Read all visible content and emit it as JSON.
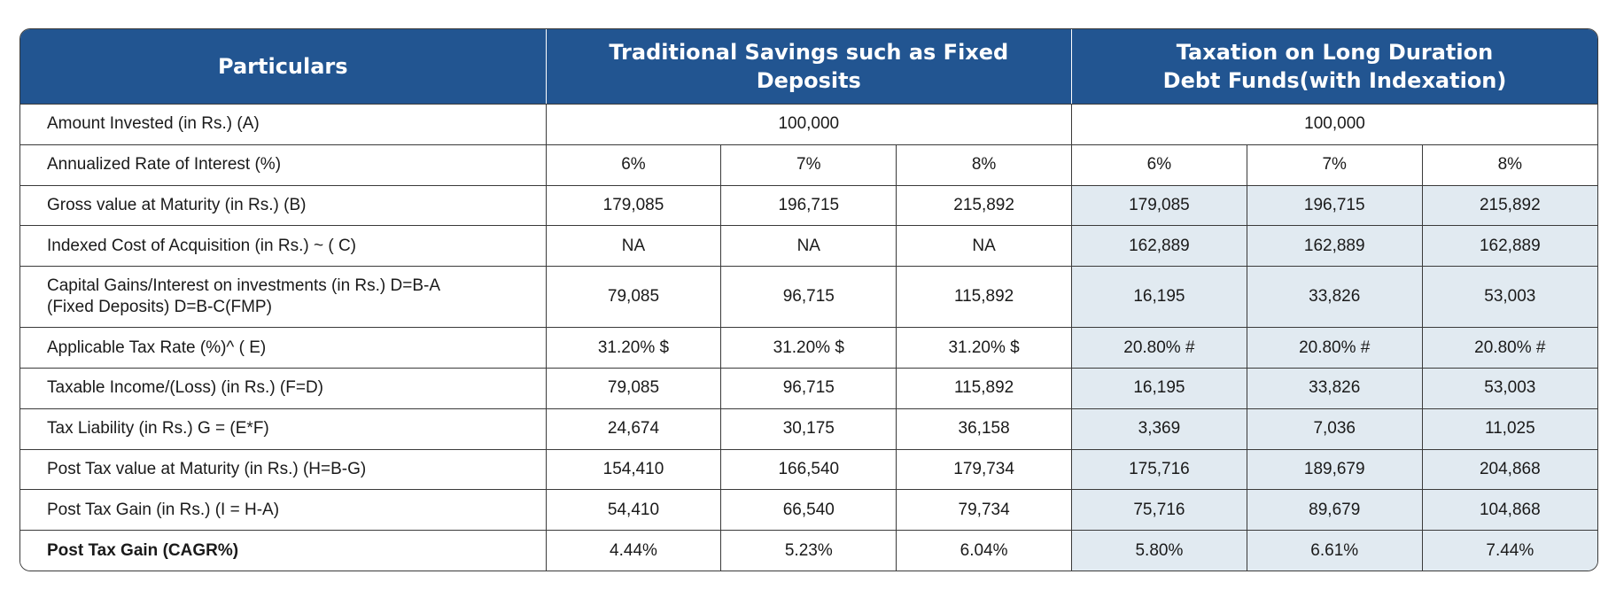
{
  "header": {
    "particulars": "Particulars",
    "traditional": "Traditional Savings such as Fixed Deposits",
    "debt_line1": "Taxation on Long Duration",
    "debt_line2": "Debt Funds(with Indexation)"
  },
  "colors": {
    "header_bg": "#225591",
    "header_text": "#ffffff",
    "shaded_cell": "#e1eaf1",
    "border": "#3a3a3a"
  },
  "rows": {
    "amount": {
      "label": "Amount Invested (in Rs.) (A)",
      "traditional": "100,000",
      "debt": "100,000"
    },
    "rate": {
      "label": "Annualized Rate of Interest (%)",
      "values": [
        "6%",
        "7%",
        "8%",
        "6%",
        "7%",
        "8%"
      ]
    },
    "gross": {
      "label": "Gross value at Maturity (in Rs.) (B)",
      "values": [
        "179,085",
        "196,715",
        "215,892",
        "179,085",
        "196,715",
        "215,892"
      ]
    },
    "indexed": {
      "label": "Indexed Cost of Acquisition (in Rs.) ~ ( C)",
      "values": [
        "NA",
        "NA",
        "NA",
        "162,889",
        "162,889",
        "162,889"
      ]
    },
    "capital_gains": {
      "label_line1": "Capital Gains/Interest on investments (in Rs.) D=B-A",
      "label_line2": "(Fixed Deposits) D=B-C(FMP)",
      "values": [
        "79,085",
        "96,715",
        "115,892",
        "16,195",
        "33,826",
        "53,003"
      ]
    },
    "tax_rate": {
      "label": "Applicable Tax Rate (%)^ ( E)",
      "values": [
        "31.20% $",
        "31.20% $",
        "31.20% $",
        "20.80% #",
        "20.80% #",
        "20.80% #"
      ]
    },
    "taxable_income": {
      "label": "Taxable Income/(Loss) (in Rs.) (F=D)",
      "values": [
        "79,085",
        "96,715",
        "115,892",
        "16,195",
        "33,826",
        "53,003"
      ]
    },
    "tax_liability": {
      "label": "Tax Liability (in Rs.) G = (E*F)",
      "values": [
        "24,674",
        "30,175",
        "36,158",
        "3,369",
        "7,036",
        "11,025"
      ]
    },
    "post_tax_value": {
      "label": "Post Tax value at Maturity (in Rs.) (H=B-G)",
      "values": [
        "154,410",
        "166,540",
        "179,734",
        "175,716",
        "189,679",
        "204,868"
      ]
    },
    "post_tax_gain": {
      "label": "Post Tax Gain (in Rs.) (I = H-A)",
      "values": [
        "54,410",
        "66,540",
        "79,734",
        "75,716",
        "89,679",
        "104,868"
      ]
    },
    "cagr": {
      "label": "Post Tax Gain (CAGR%)",
      "values": [
        "4.44%",
        "5.23%",
        "6.04%",
        "5.80%",
        "6.61%",
        "7.44%"
      ]
    }
  }
}
